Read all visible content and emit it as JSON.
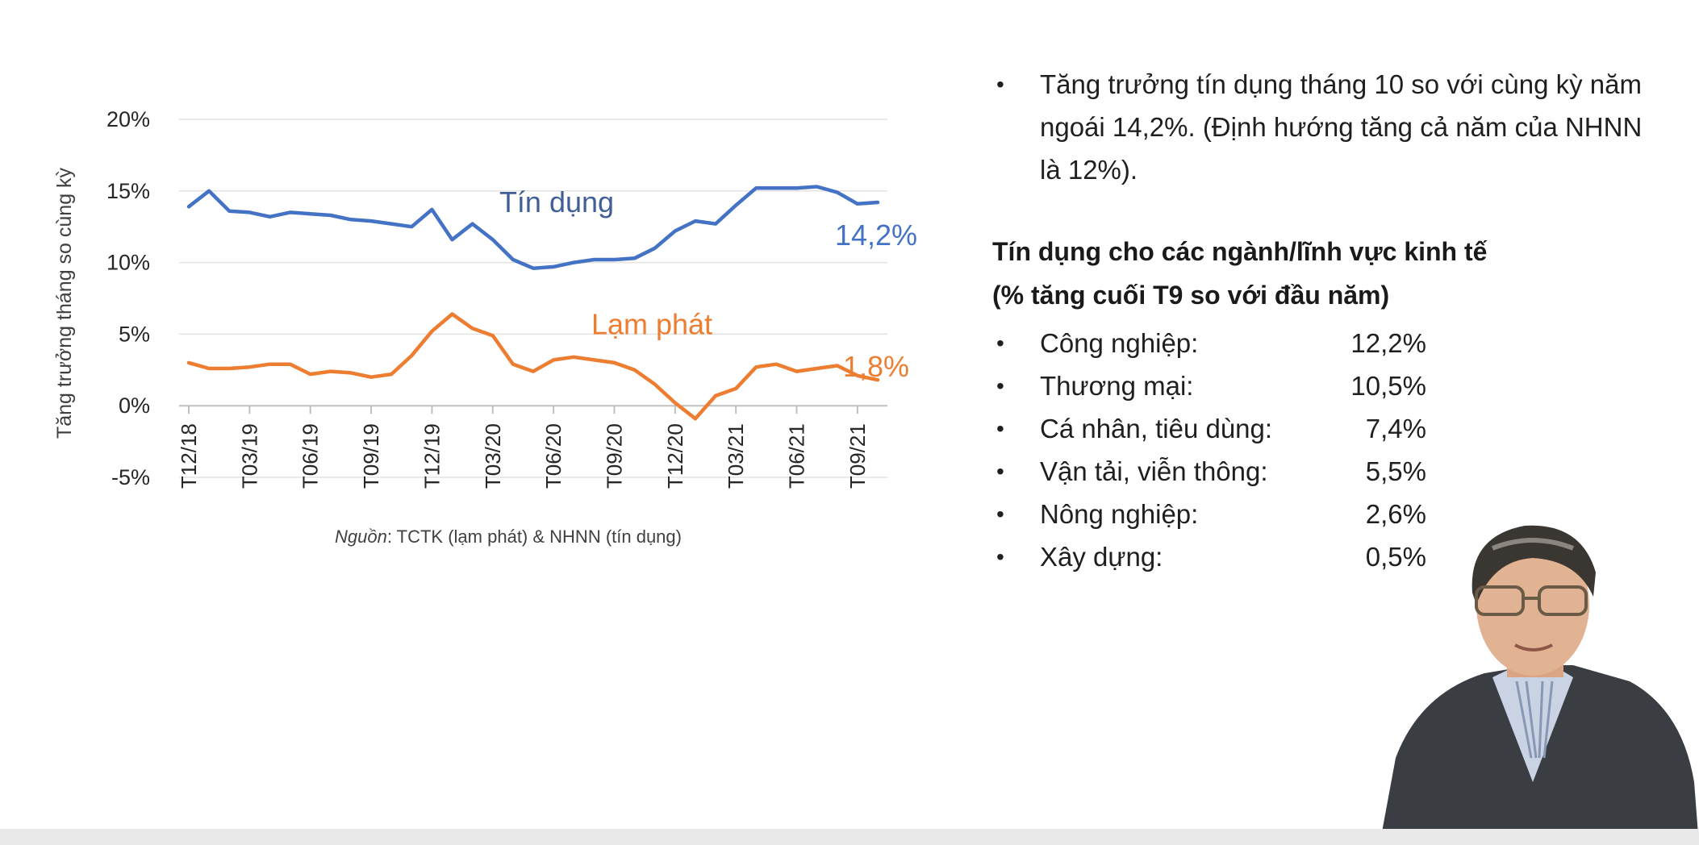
{
  "chart_data": {
    "type": "line",
    "ylabel": "Tăng trưởng tháng so cùng kỳ",
    "ylim": [
      -5,
      20
    ],
    "yticks": [
      "20%",
      "15%",
      "10%",
      "5%",
      "0%",
      "-5%"
    ],
    "ytick_values": [
      20,
      15,
      10,
      5,
      0,
      -5
    ],
    "xtick_labels": [
      "T12/18",
      "T03/19",
      "T06/19",
      "T09/19",
      "T12/19",
      "T03/20",
      "T06/20",
      "T09/20",
      "T12/20",
      "T03/21",
      "T06/21",
      "T09/21"
    ],
    "x": [
      "T12/18",
      "T01/19",
      "T02/19",
      "T03/19",
      "T04/19",
      "T05/19",
      "T06/19",
      "T07/19",
      "T08/19",
      "T09/19",
      "T10/19",
      "T11/19",
      "T12/19",
      "T01/20",
      "T02/20",
      "T03/20",
      "T04/20",
      "T05/20",
      "T06/20",
      "T07/20",
      "T08/20",
      "T09/20",
      "T10/20",
      "T11/20",
      "T12/20",
      "T01/21",
      "T02/21",
      "T03/21",
      "T04/21",
      "T05/21",
      "T06/21",
      "T07/21",
      "T08/21",
      "T09/21",
      "T10/21"
    ],
    "grid": true,
    "series": [
      {
        "name": "Tín dụng",
        "color": "#4472c4",
        "end_label": "14,2%",
        "values": [
          13.9,
          15.0,
          13.6,
          13.5,
          13.2,
          13.5,
          13.4,
          13.3,
          13.0,
          12.9,
          12.7,
          12.5,
          13.7,
          11.6,
          12.7,
          11.6,
          10.2,
          9.6,
          9.7,
          10.0,
          10.2,
          10.2,
          10.3,
          11.0,
          12.2,
          12.9,
          12.7,
          14.0,
          15.2,
          15.2,
          15.2,
          15.3,
          14.9,
          14.1,
          14.2
        ]
      },
      {
        "name": "Lạm phát",
        "color": "#ed7d31",
        "end_label": "1,8%",
        "values": [
          3.0,
          2.6,
          2.6,
          2.7,
          2.9,
          2.9,
          2.2,
          2.4,
          2.3,
          2.0,
          2.2,
          3.5,
          5.2,
          6.4,
          5.4,
          4.9,
          2.9,
          2.4,
          3.2,
          3.4,
          3.2,
          3.0,
          2.5,
          1.5,
          0.2,
          -0.9,
          0.7,
          1.2,
          2.7,
          2.9,
          2.4,
          2.6,
          2.8,
          2.1,
          1.8
        ]
      }
    ]
  },
  "source_note": {
    "prefix": "Nguồn",
    "text": ": TCTK (lạm phát) & NHNN (tín dụng)"
  },
  "right_panel": {
    "intro_bullet": "Tăng trưởng tín dụng tháng 10 so với cùng kỳ năm ngoái 14,2%. (Định hướng tăng cả năm của NHNN là 12%).",
    "section_title_line1": "Tín dụng cho các ngành/lĩnh vực kinh tế",
    "section_title_line2": "(% tăng cuối T9 so với đầu năm)",
    "bullet_glyph": "•",
    "sectors": [
      {
        "name": "Công nghiệp:",
        "value": "12,2%"
      },
      {
        "name": "Thương mại:",
        "value": "10,5%"
      },
      {
        "name": "Cá nhân, tiêu dùng:",
        "value": "7,4%"
      },
      {
        "name": "Vận tải, viễn thông:",
        "value": "5,5%"
      },
      {
        "name": "Nông nghiệp:",
        "value": "2,6%"
      },
      {
        "name": "Xây dựng:",
        "value": "0,5%"
      }
    ]
  }
}
